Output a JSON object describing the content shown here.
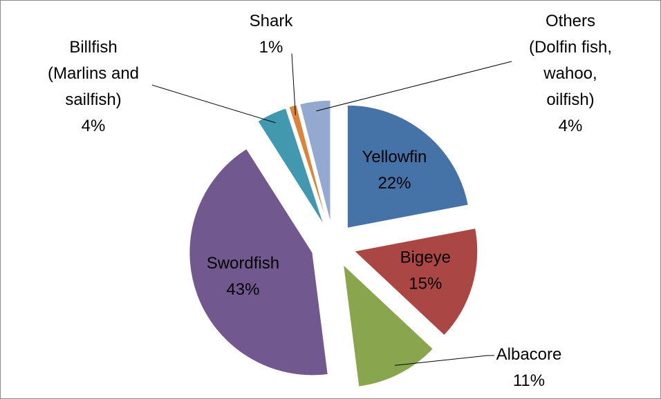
{
  "chart_data": {
    "type": "pie",
    "categories": [
      "Yellowfin",
      "Bigeye",
      "Albacore",
      "Swordfish",
      "Billfish (Marlins and sailfish)",
      "Shark",
      "Others (Dolfin fish, wahoo, oilfish)"
    ],
    "values": [
      22,
      15,
      11,
      43,
      4,
      1,
      4
    ],
    "value_labels": [
      "22%",
      "15%",
      "11%",
      "43%",
      "4%",
      "1%",
      "4%"
    ],
    "colors": [
      "#4572a7",
      "#aa4643",
      "#89a54e",
      "#71588f",
      "#4198af",
      "#db843d",
      "#93a9cf"
    ]
  }
}
